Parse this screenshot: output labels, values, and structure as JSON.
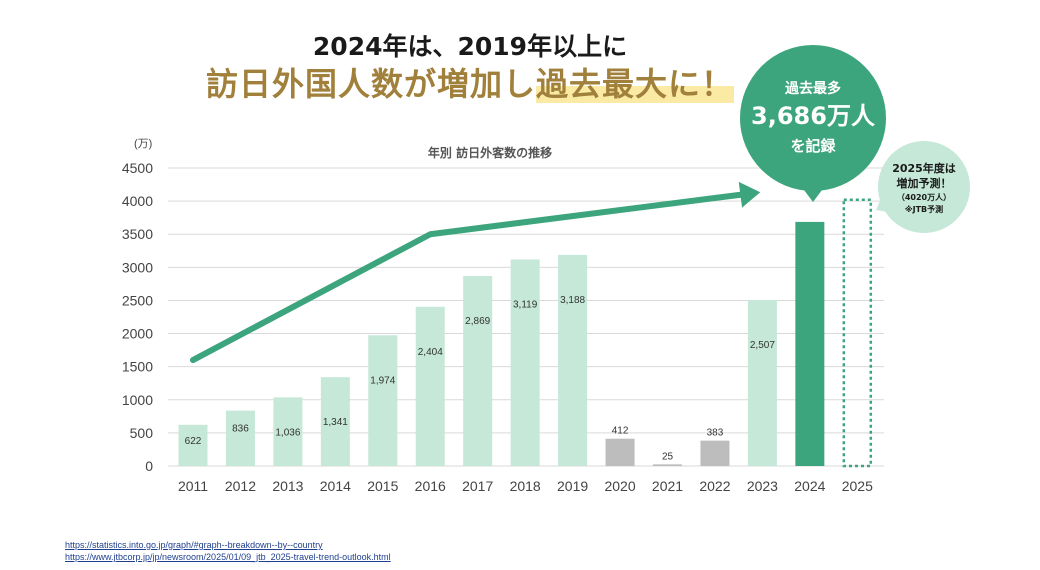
{
  "headline": {
    "line1": "2024年は、2019年以上に",
    "line2_part1": "訪日外国人数が増加し",
    "line2_part2": "過去最大に！"
  },
  "chart_data": {
    "type": "bar",
    "title": "年別 訪日外客数の推移",
    "ylabel": "(万)",
    "ylim": [
      0,
      4500
    ],
    "yticks": [
      0,
      500,
      1000,
      1500,
      2000,
      2500,
      3000,
      3500,
      4000,
      4500
    ],
    "categories": [
      "2011",
      "2012",
      "2013",
      "2014",
      "2015",
      "2016",
      "2017",
      "2018",
      "2019",
      "2020",
      "2021",
      "2022",
      "2023",
      "2024",
      "2025"
    ],
    "values": [
      622,
      836,
      1036,
      1341,
      1974,
      2404,
      2869,
      3119,
      3188,
      412,
      25,
      383,
      2507,
      3686,
      4020
    ],
    "data_labels": [
      "622",
      "836",
      "1,036",
      "1,341",
      "1,974",
      "2,404",
      "2,869",
      "3,119",
      "3,188",
      "412",
      "25",
      "383",
      "2,507",
      "",
      ""
    ],
    "bar_kind": [
      "normal",
      "normal",
      "normal",
      "normal",
      "normal",
      "normal",
      "normal",
      "normal",
      "normal",
      "covid",
      "covid",
      "covid",
      "normal",
      "record",
      "forecast"
    ],
    "trend_arrow": {
      "x": [
        "2011",
        "2016",
        "2024"
      ],
      "y": [
        1600,
        3500,
        4230
      ]
    },
    "grid": true,
    "colors": {
      "normal": "#c5e8d8",
      "covid": "#bdbdbd",
      "record": "#3da57e",
      "forecast": "#3da57e",
      "arrow": "#3da57e",
      "bubble_record": "#3da57e",
      "bubble_forecast": "#c5e8d8",
      "grid": "#d9d9d9"
    }
  },
  "callouts": {
    "record": {
      "line1": "過去最多",
      "line2": "3,686万人",
      "line3": "を記録"
    },
    "forecast": {
      "line1": "2025年度は",
      "line2": "増加予測！",
      "line3": "（4020万人）",
      "line4": "※JTB予測"
    }
  },
  "sources": [
    "https://statistics.into.go.jp/graph/#graph--breakdown--by--country",
    "https://www.jtbcorp.jp/jp/newsroom/2025/01/09_jtb_2025-travel-trend-outlook.html"
  ]
}
